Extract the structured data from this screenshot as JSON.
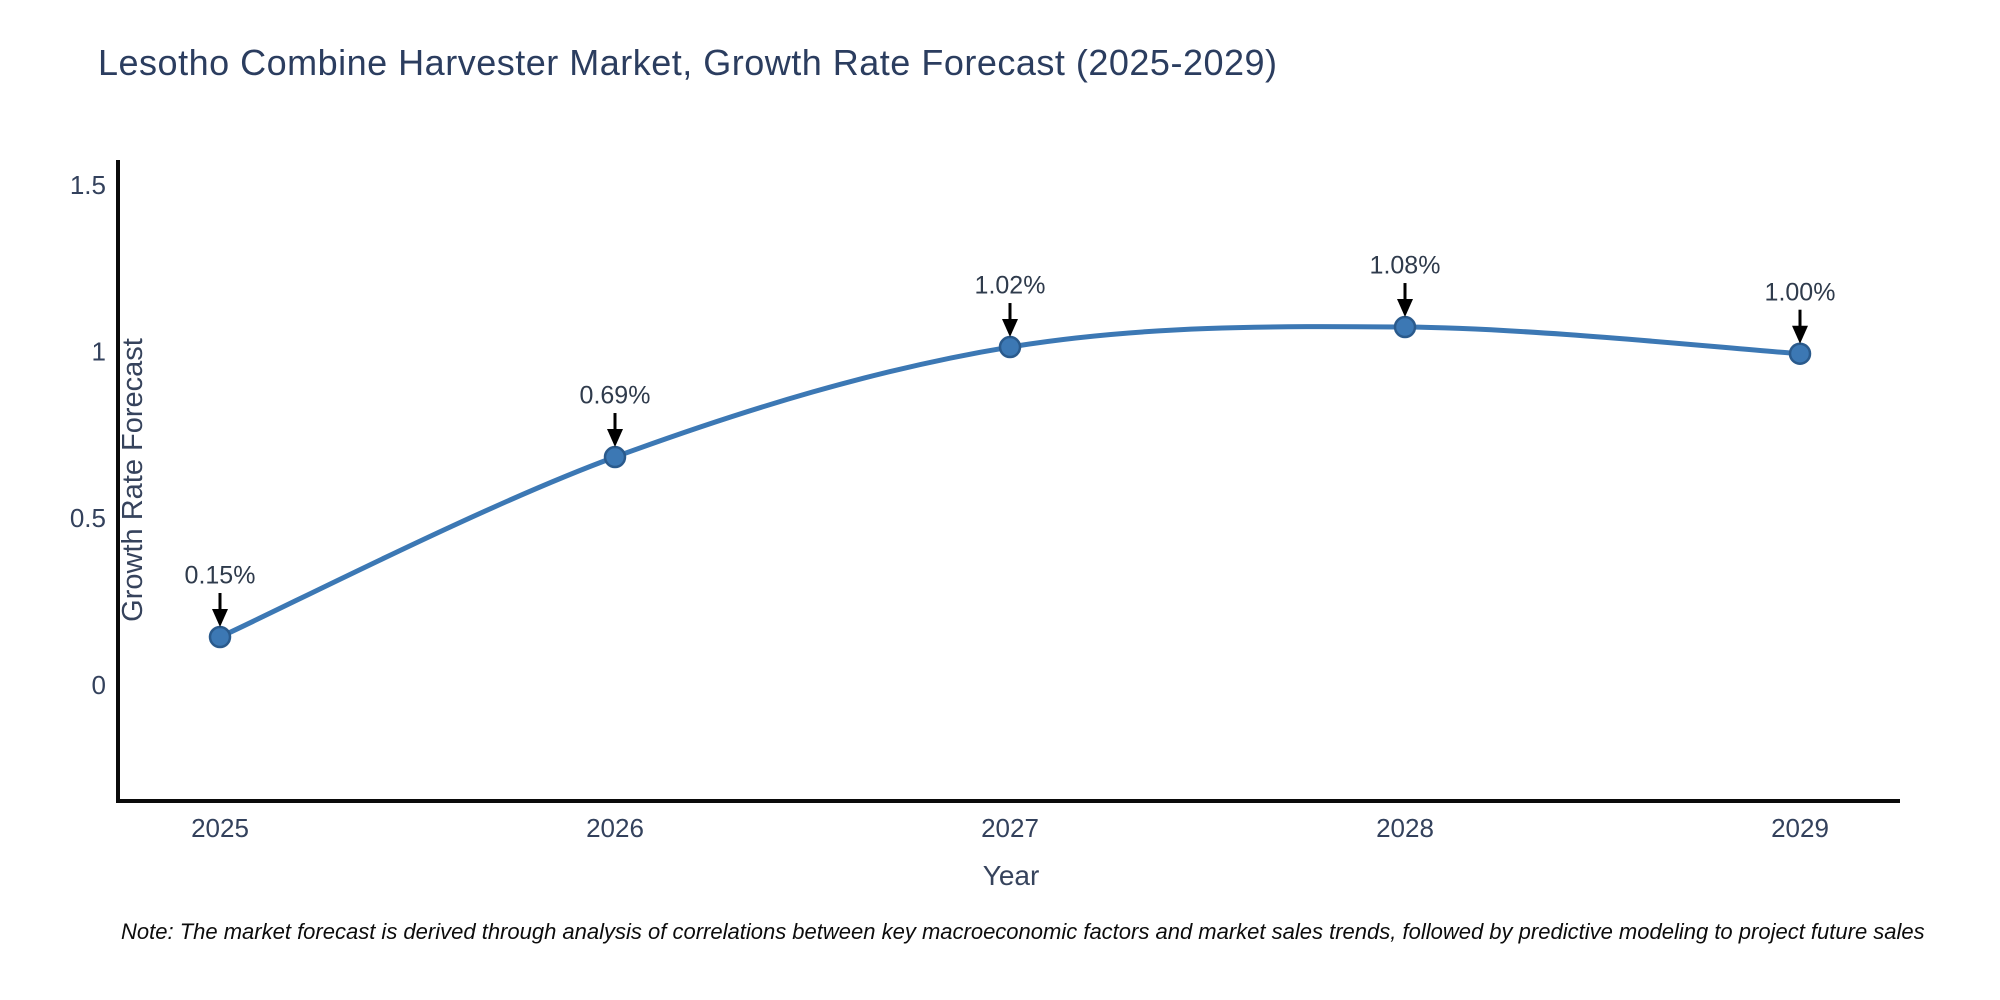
{
  "note": "Note: The market forecast is derived through analysis of correlations between key macroeconomic factors and market sales trends, followed by predictive modeling to project future sales",
  "chart_data": {
    "type": "line",
    "title": "Lesotho Combine Harvester Market, Growth Rate Forecast (2025-2029)",
    "xlabel": "Year",
    "ylabel": "Growth Rate Forecast",
    "categories": [
      "2025",
      "2026",
      "2027",
      "2028",
      "2029"
    ],
    "series": [
      {
        "name": "Growth Rate Forecast",
        "values": [
          0.15,
          0.69,
          1.02,
          1.08,
          1.0
        ],
        "point_labels": [
          "0.15%",
          "0.69%",
          "1.02%",
          "1.08%",
          "1.00%"
        ]
      }
    ],
    "ylim": [
      -0.35,
      1.92
    ],
    "yticks": [
      0,
      0.5,
      1,
      1.5
    ],
    "ytick_labels": [
      "0",
      "0.5",
      "1",
      "1.5"
    ],
    "grid": false,
    "legend_position": "none",
    "line_shape": "spline",
    "colors": {
      "line": "#3c78b4",
      "marker_fill": "#3c78b4",
      "marker_edge": "#2a5a8c",
      "axis": "#0a0a0a",
      "tick_text": "#33415c",
      "title_text": "#2b3d5f",
      "annotation_text": "#2f3b4c",
      "arrow": "#000000"
    }
  }
}
